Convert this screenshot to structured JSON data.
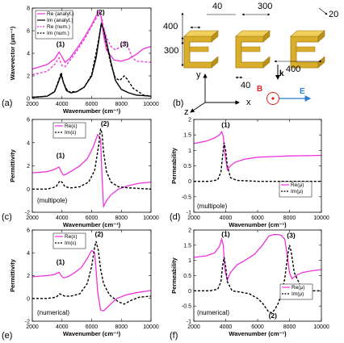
{
  "colors": {
    "re": "#ee33dd",
    "im": "#000000",
    "gold": "#d9ae2b",
    "gold_dark": "#a57c12",
    "b_arrow": "#e02020",
    "e_arrow": "#2a7fd4"
  },
  "chart_data": [
    {
      "id": "a",
      "type": "line",
      "panel_label": "(a)",
      "xlabel": "Wavenumber (cm⁻¹)",
      "ylabel": "Wavevector (μm⁻¹)",
      "xlim": [
        2000,
        10000
      ],
      "ylim": [
        0,
        8
      ],
      "xticks": [
        2000,
        4000,
        6000,
        8000,
        10000
      ],
      "yticks": [
        0,
        2,
        4,
        6,
        8
      ],
      "grid": false,
      "legend_position": "top-left",
      "annotations": [
        {
          "text": "(1)",
          "x": 3900,
          "y": 4.6
        },
        {
          "text": "(2)",
          "x": 6600,
          "y": 8.4
        },
        {
          "text": "(3)",
          "x": 8200,
          "y": 4.6
        }
      ],
      "series": [
        {
          "name": "Re (analyt.)",
          "color": "#ee33dd",
          "dash": "solid",
          "x": [
            2000,
            2500,
            3000,
            3500,
            3800,
            4000,
            4200,
            4500,
            5000,
            5500,
            6000,
            6300,
            6500,
            6600,
            6700,
            6800,
            7000,
            7500,
            8000,
            8500,
            9000,
            9500,
            10000
          ],
          "y": [
            2.6,
            2.8,
            3.0,
            3.5,
            4.1,
            3.7,
            3.2,
            3.5,
            4.4,
            5.4,
            6.5,
            7.3,
            7.7,
            7.5,
            6.7,
            5.6,
            4.3,
            3.4,
            3.3,
            3.5,
            3.9,
            4.4,
            4.6
          ]
        },
        {
          "name": "Im (analyt.)",
          "color": "#000000",
          "dash": "solid",
          "x": [
            2000,
            3000,
            3500,
            3800,
            3950,
            4100,
            4300,
            4600,
            5000,
            5500,
            6000,
            6300,
            6500,
            6650,
            6800,
            7000,
            7300,
            7600,
            8000,
            8500,
            9000,
            10000
          ],
          "y": [
            0.1,
            0.2,
            0.6,
            1.6,
            2.1,
            1.4,
            0.7,
            0.5,
            0.6,
            1.0,
            2.0,
            3.6,
            5.3,
            6.6,
            6.2,
            5.0,
            3.2,
            1.6,
            0.8,
            0.5,
            0.3,
            0.2
          ]
        },
        {
          "name": "Re (num.)",
          "color": "#ee33dd",
          "dash": "dash",
          "x": [
            2000,
            3000,
            3500,
            3800,
            4000,
            4200,
            4500,
            5000,
            5500,
            6000,
            6400,
            6600,
            6700,
            6800,
            7000,
            7300,
            7600,
            8000,
            8200,
            8400,
            8700,
            9000,
            10000
          ],
          "y": [
            2.1,
            2.4,
            3.0,
            3.6,
            2.9,
            2.8,
            3.3,
            4.2,
            5.2,
            6.4,
            7.3,
            7.4,
            7.0,
            6.3,
            5.4,
            4.6,
            4.3,
            4.6,
            5.1,
            4.8,
            3.7,
            3.3,
            3.2
          ]
        },
        {
          "name": "Im (num.)",
          "color": "#000000",
          "dash": "dash",
          "x": [
            2000,
            3000,
            3500,
            3800,
            3950,
            4100,
            4400,
            5000,
            5500,
            6000,
            6400,
            6650,
            6800,
            7000,
            7300,
            7600,
            7900,
            8200,
            8400,
            8800,
            9500,
            10000
          ],
          "y": [
            0.1,
            0.2,
            0.6,
            1.7,
            2.3,
            1.4,
            0.6,
            0.6,
            1.0,
            2.1,
            4.7,
            6.6,
            6.1,
            4.8,
            3.0,
            1.8,
            1.6,
            2.0,
            1.7,
            0.9,
            0.3,
            0.2
          ]
        }
      ]
    },
    {
      "id": "c",
      "type": "line",
      "panel_label": "(c)",
      "note": "(multipole)",
      "xlabel": "Wavenumber (cm⁻¹)",
      "ylabel": "Permittivity",
      "xlim": [
        2000,
        10000
      ],
      "ylim": [
        -2,
        6
      ],
      "xticks": [
        2000,
        4000,
        6000,
        8000,
        10000
      ],
      "yticks": [
        -2,
        0,
        2,
        4,
        6
      ],
      "grid": false,
      "legend_position": "top-left",
      "annotations": [
        {
          "text": "(1)",
          "x": 3900,
          "y": 2.7
        },
        {
          "text": "(2)",
          "x": 6900,
          "y": 5.6
        }
      ],
      "series": [
        {
          "name": "Re(ε)",
          "color": "#ee33dd",
          "dash": "solid",
          "x": [
            2000,
            3000,
            3500,
            3800,
            3950,
            4100,
            4300,
            4700,
            5200,
            5700,
            6100,
            6400,
            6600,
            6700,
            6800,
            7000,
            7300,
            7800,
            8500,
            9200,
            10000
          ],
          "y": [
            1.4,
            1.5,
            1.7,
            1.9,
            1.5,
            1.2,
            1.3,
            1.6,
            2.0,
            2.6,
            3.6,
            4.7,
            4.3,
            1.0,
            -1.5,
            -1.0,
            -0.5,
            0.0,
            0.3,
            0.5,
            0.6
          ]
        },
        {
          "name": "Im(ε)",
          "color": "#000000",
          "dash": "dash",
          "x": [
            2000,
            3000,
            3600,
            3850,
            4000,
            4200,
            4600,
            5200,
            5800,
            6200,
            6500,
            6600,
            6700,
            6800,
            7000,
            7300,
            7800,
            8500,
            10000
          ],
          "y": [
            0.0,
            0.0,
            0.2,
            0.7,
            0.6,
            0.2,
            0.1,
            0.2,
            0.6,
            1.6,
            4.0,
            5.2,
            4.8,
            3.2,
            1.5,
            0.6,
            0.2,
            0.1,
            0.0
          ]
        }
      ]
    },
    {
      "id": "d",
      "type": "line",
      "panel_label": "(d)",
      "note": "(multipole)",
      "xlabel": "Wavenumber (cm⁻¹)",
      "ylabel": "Permeability",
      "xlim": [
        2000,
        10000
      ],
      "ylim": [
        -1,
        2
      ],
      "xticks": [
        2000,
        4000,
        6000,
        8000,
        10000
      ],
      "yticks": [
        -1,
        -0.5,
        0,
        0.5,
        1,
        1.5,
        2
      ],
      "grid": false,
      "legend_position": "right",
      "annotations": [
        {
          "text": "(1)",
          "x": 4000,
          "y": 1.75
        }
      ],
      "series": [
        {
          "name": "Re(μ)",
          "color": "#ee33dd",
          "dash": "solid",
          "x": [
            2000,
            2800,
            3300,
            3600,
            3750,
            3850,
            3950,
            4100,
            4300,
            4600,
            5200,
            6000,
            7000,
            8000,
            9000,
            10000
          ],
          "y": [
            1.22,
            1.3,
            1.4,
            1.5,
            1.6,
            1.45,
            0.9,
            0.38,
            0.5,
            0.62,
            0.72,
            0.78,
            0.8,
            0.82,
            0.83,
            0.84
          ]
        },
        {
          "name": "Im(μ)",
          "color": "#000000",
          "dash": "dash",
          "x": [
            2000,
            3000,
            3500,
            3700,
            3800,
            3900,
            4000,
            4100,
            4300,
            4700,
            6000,
            10000
          ],
          "y": [
            0.0,
            0.0,
            0.05,
            0.3,
            0.8,
            1.25,
            1.0,
            0.5,
            0.12,
            0.03,
            0.0,
            0.0
          ]
        }
      ]
    },
    {
      "id": "e",
      "type": "line",
      "panel_label": "(e)",
      "note": "(numerical)",
      "xlabel": "Wavenumber (cm⁻¹)",
      "ylabel": "Permittivity",
      "xlim": [
        2000,
        10000
      ],
      "ylim": [
        -2,
        6
      ],
      "xticks": [
        2000,
        4000,
        6000,
        8000,
        10000
      ],
      "yticks": [
        -2,
        0,
        2,
        4,
        6
      ],
      "grid": false,
      "legend_position": "top-left",
      "annotations": [
        {
          "text": "(1)",
          "x": 3900,
          "y": 3.0
        },
        {
          "text": "(2)",
          "x": 6500,
          "y": 5.5
        }
      ],
      "series": [
        {
          "name": "Re(ε)",
          "color": "#ee33dd",
          "dash": "solid",
          "x": [
            2000,
            3000,
            3500,
            3800,
            3950,
            4100,
            4400,
            4800,
            5300,
            5700,
            6000,
            6200,
            6300,
            6400,
            6600,
            6800,
            7200,
            7700,
            8300,
            9000,
            9500,
            10000
          ],
          "y": [
            1.9,
            2.0,
            2.1,
            2.3,
            2.0,
            1.8,
            1.9,
            2.2,
            2.7,
            3.5,
            4.2,
            4.0,
            2.5,
            0.6,
            -1.0,
            -1.1,
            -0.6,
            0.0,
            0.3,
            0.5,
            0.6,
            0.7
          ]
        },
        {
          "name": "Im(ε)",
          "color": "#000000",
          "dash": "dash",
          "x": [
            2000,
            3000,
            3600,
            3850,
            4000,
            4200,
            4600,
            5200,
            5700,
            6000,
            6200,
            6300,
            6450,
            6600,
            6800,
            7200,
            7800,
            8200,
            8600,
            9200,
            10000
          ],
          "y": [
            0.0,
            0.0,
            0.1,
            0.4,
            0.3,
            0.2,
            0.2,
            0.4,
            1.3,
            2.8,
            4.5,
            5.0,
            4.2,
            2.6,
            1.3,
            0.3,
            -0.3,
            -0.5,
            -0.2,
            0.1,
            0.2
          ]
        }
      ]
    },
    {
      "id": "f",
      "type": "line",
      "panel_label": "(f)",
      "note": "(numerical)",
      "xlabel": "Wavenumber (cm⁻¹)",
      "ylabel": "Permeability",
      "xlim": [
        2000,
        10000
      ],
      "ylim": [
        -1,
        2
      ],
      "xticks": [
        2000,
        4000,
        6000,
        8000,
        10000
      ],
      "yticks": [
        -1,
        -0.5,
        0,
        0.5,
        1,
        1.5,
        2
      ],
      "grid": false,
      "legend_position": "bottom-right",
      "annotations": [
        {
          "text": "(1)",
          "x": 4000,
          "y": 1.85
        },
        {
          "text": "(2)",
          "x": 6950,
          "y": -0.9
        },
        {
          "text": "(3)",
          "x": 8100,
          "y": 1.75
        }
      ],
      "series": [
        {
          "name": "Re(μ)",
          "color": "#ee33dd",
          "dash": "solid",
          "x": [
            2000,
            2800,
            3300,
            3600,
            3750,
            3850,
            3950,
            4100,
            4300,
            4700,
            5200,
            5800,
            6300,
            6700,
            7000,
            7300,
            7500,
            7700,
            7850,
            8000,
            8150,
            8400,
            8800,
            9300,
            10000
          ],
          "y": [
            1.1,
            1.15,
            1.25,
            1.45,
            1.7,
            1.5,
            0.7,
            0.35,
            0.6,
            0.85,
            1.0,
            1.2,
            1.5,
            1.8,
            1.85,
            1.85,
            1.82,
            1.7,
            1.2,
            0.6,
            0.4,
            0.5,
            0.6,
            0.65,
            0.7
          ]
        },
        {
          "name": "Im(μ)",
          "color": "#000000",
          "dash": "dash",
          "x": [
            2000,
            3000,
            3500,
            3700,
            3800,
            3900,
            4000,
            4100,
            4400,
            5000,
            5500,
            6000,
            6300,
            6500,
            6700,
            6900,
            7100,
            7300,
            7500,
            7700,
            7900,
            8000,
            8100,
            8300,
            8700,
            9500,
            10000
          ],
          "y": [
            0.0,
            0.0,
            0.05,
            0.3,
            0.8,
            1.1,
            0.8,
            0.3,
            0.0,
            -0.05,
            -0.1,
            -0.25,
            -0.4,
            -0.55,
            -0.7,
            -0.72,
            -0.6,
            -0.4,
            -0.1,
            0.4,
            1.2,
            1.5,
            1.3,
            0.6,
            0.15,
            0.0,
            0.0
          ]
        }
      ]
    }
  ],
  "panel_b": {
    "label": "(b)",
    "dims": {
      "d400_left": "400",
      "d300_left": "300",
      "d40_top": "40",
      "d300_top": "300",
      "d20": "20",
      "d40_bottom": "40",
      "d400_bottom": "400"
    },
    "axes": {
      "x": "x",
      "y": "y",
      "z": "z"
    },
    "fields": {
      "k": "k",
      "B": "B",
      "E": "E"
    }
  }
}
